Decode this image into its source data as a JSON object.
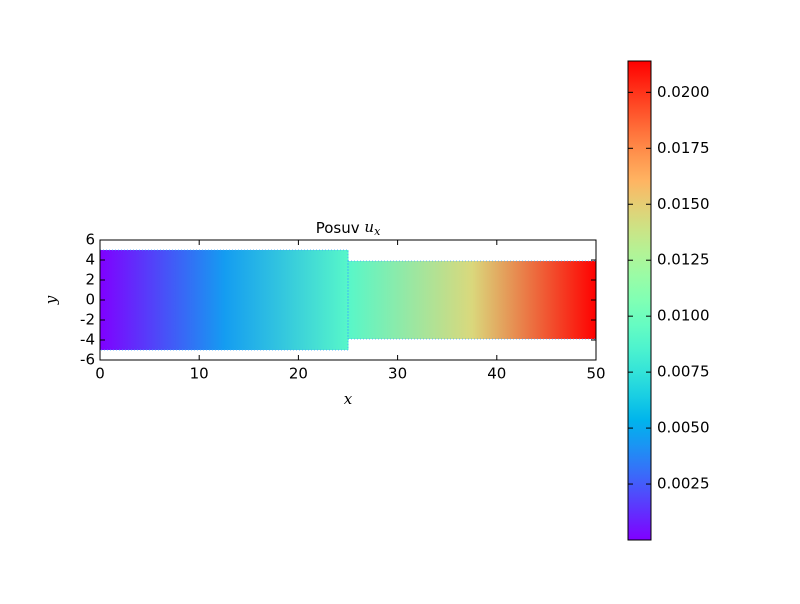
{
  "chart_data": {
    "type": "field",
    "title": "Posuv",
    "title_symbol": "u",
    "title_subscript": "x",
    "xlabel": "x",
    "ylabel": "y",
    "x": [
      0,
      12.5,
      25,
      37.5,
      50
    ],
    "values": [
      0.0,
      0.0045,
      0.009,
      0.0145,
      0.0214
    ],
    "sections": [
      {
        "x": [
          0,
          25
        ],
        "y": [
          -5,
          5
        ]
      },
      {
        "x": [
          25,
          50
        ],
        "y": [
          -3.9,
          3.9
        ]
      }
    ],
    "xlim": [
      0,
      50
    ],
    "xticks": [
      0,
      10,
      20,
      30,
      40,
      50
    ],
    "ylim": [
      -6,
      6
    ],
    "yticks": [
      -6,
      -4,
      -2,
      0,
      2,
      4,
      6
    ],
    "colormap": "rainbow",
    "clim": [
      0.0,
      0.0214
    ],
    "cticks": [
      0.0025,
      {
        "value": 0.005,
        "label": "0.0050"
      },
      0.0075,
      {
        "value": 0.01,
        "label": "0.0100"
      },
      0.0125,
      {
        "value": 0.015,
        "label": "0.0150"
      },
      0.0175,
      {
        "value": 0.02,
        "label": "0.0200"
      }
    ]
  }
}
